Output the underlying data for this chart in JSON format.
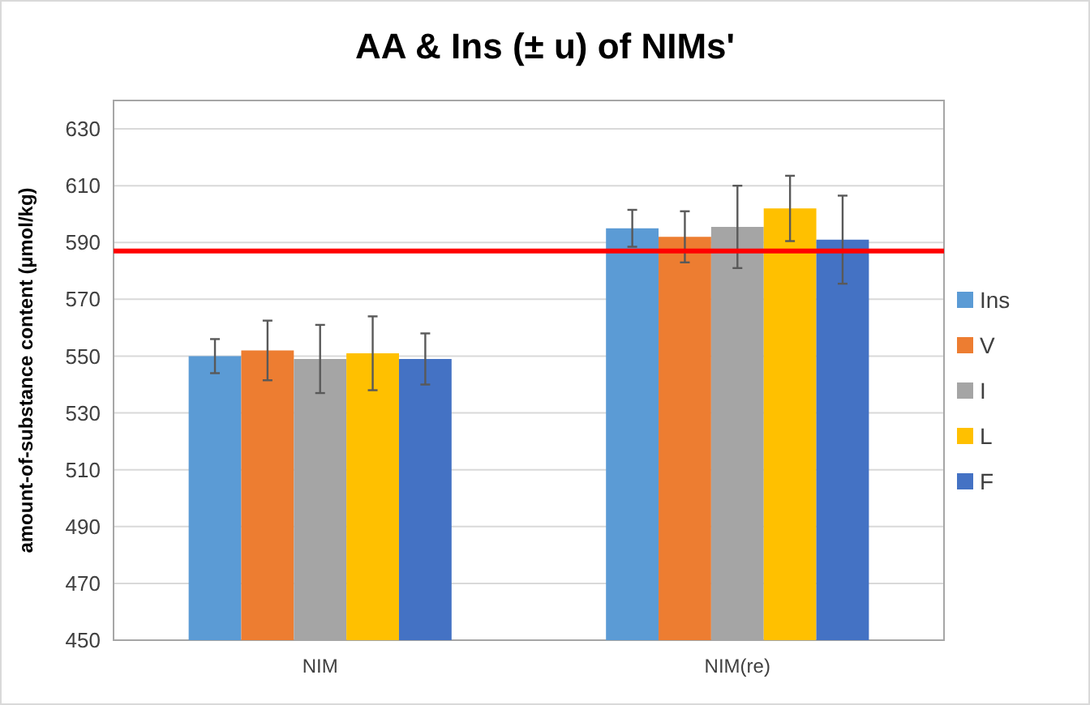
{
  "chart_data": {
    "type": "bar",
    "title": "AA & Ins (± u) of NIMs'",
    "ylabel": "amount-of-substance content (µmol/kg)",
    "categories": [
      "NIM",
      "NIM(re)"
    ],
    "series": [
      {
        "name": "Ins",
        "color": "#5b9bd5",
        "values": [
          550,
          595
        ],
        "errors": [
          6,
          6.5
        ]
      },
      {
        "name": "V",
        "color": "#ed7d31",
        "values": [
          552,
          592
        ],
        "errors": [
          10.5,
          9
        ]
      },
      {
        "name": "I",
        "color": "#a5a5a5",
        "values": [
          549,
          595.5
        ],
        "errors": [
          12,
          14.5
        ]
      },
      {
        "name": "L",
        "color": "#ffc000",
        "values": [
          551,
          602
        ],
        "errors": [
          13,
          11.5
        ]
      },
      {
        "name": "F",
        "color": "#4472c4",
        "values": [
          549,
          591
        ],
        "errors": [
          9,
          15.5
        ]
      }
    ],
    "ylim": [
      450,
      640
    ],
    "yticks": [
      450,
      470,
      490,
      510,
      530,
      550,
      570,
      590,
      610,
      630
    ],
    "grid": "y",
    "legend": "right",
    "ref_lines": [
      {
        "axis": "y",
        "value": 587,
        "color": "#ff0000"
      }
    ]
  }
}
